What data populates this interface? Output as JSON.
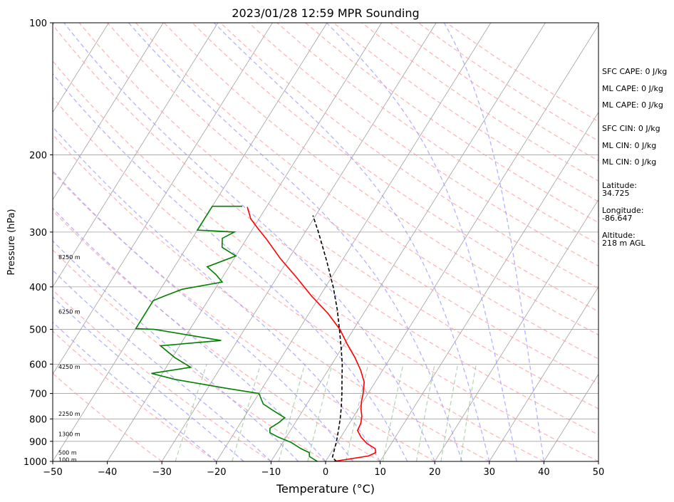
{
  "chart_data": {
    "type": "line",
    "title": "2023/01/28 12:59 MPR Sounding",
    "xlabel": "Temperature (°C)",
    "ylabel": "Pressure (hPa)",
    "xlim": [
      -50,
      50
    ],
    "ylim": [
      1000,
      100
    ],
    "y_scale": "log",
    "x_ticks": [
      -50,
      -40,
      -30,
      -20,
      -10,
      0,
      10,
      20,
      30,
      40,
      50
    ],
    "x_tick_labels": [
      "−50",
      "−40",
      "−30",
      "−20",
      "−10",
      "0",
      "10",
      "20",
      "30",
      "40",
      "50"
    ],
    "y_ticks": [
      1000,
      900,
      800,
      700,
      600,
      500,
      400,
      300,
      200,
      100
    ],
    "y_tick_labels": [
      "1000",
      "900",
      "800",
      "700",
      "600",
      "500",
      "400",
      "300",
      "200",
      "100"
    ],
    "grid": true,
    "series": [
      {
        "color": "#ff0000",
        "style": "solid",
        "points": [
          [
            1.5,
            1000
          ],
          [
            7.2,
            972
          ],
          [
            8.2,
            955
          ],
          [
            7.6,
            935
          ],
          [
            5.5,
            910
          ],
          [
            3.7,
            880
          ],
          [
            2.3,
            850
          ],
          [
            2.1,
            820
          ],
          [
            1.5,
            790
          ],
          [
            0.5,
            760
          ],
          [
            -0.3,
            730
          ],
          [
            -0.9,
            700
          ],
          [
            -2.0,
            660
          ],
          [
            -4.0,
            620
          ],
          [
            -6.5,
            580
          ],
          [
            -9.5,
            540
          ],
          [
            -12.5,
            500
          ],
          [
            -16.5,
            460
          ],
          [
            -21.5,
            420
          ],
          [
            -26.5,
            380
          ],
          [
            -31.5,
            345
          ],
          [
            -36.5,
            310
          ],
          [
            -39.0,
            295
          ],
          [
            -41.5,
            280
          ],
          [
            -43.5,
            263
          ]
        ]
      },
      {
        "color": "#008000",
        "style": "solid",
        "points": [
          [
            -1.5,
            1000
          ],
          [
            -3.5,
            975
          ],
          [
            -4.0,
            955
          ],
          [
            -6.0,
            935
          ],
          [
            -8.5,
            905
          ],
          [
            -11.5,
            880
          ],
          [
            -13.5,
            860
          ],
          [
            -14.0,
            840
          ],
          [
            -13.0,
            815
          ],
          [
            -12.5,
            795
          ],
          [
            -15.0,
            770
          ],
          [
            -18.0,
            740
          ],
          [
            -20.0,
            700
          ],
          [
            -27.0,
            680
          ],
          [
            -37.0,
            650
          ],
          [
            -42.0,
            630
          ],
          [
            -35.5,
            610
          ],
          [
            -39.5,
            580
          ],
          [
            -43.5,
            545
          ],
          [
            -33.0,
            530
          ],
          [
            -46.5,
            500
          ],
          [
            -50.0,
            498
          ],
          [
            -50.0,
            430
          ],
          [
            -48.5,
            420
          ],
          [
            -46.0,
            405
          ],
          [
            -39.5,
            390
          ],
          [
            -41.5,
            375
          ],
          [
            -44.0,
            360
          ],
          [
            -40.0,
            340
          ],
          [
            -43.5,
            325
          ],
          [
            -44.5,
            310
          ],
          [
            -43.0,
            300
          ],
          [
            -47.5,
            298
          ],
          [
            -50.0,
            297
          ],
          [
            -50.0,
            262
          ],
          [
            -44.5,
            262
          ]
        ]
      },
      {
        "color": "#000000",
        "style": "dashed",
        "points": [
          [
            2.0,
            1000
          ],
          [
            0.8,
            980
          ],
          [
            0.4,
            950
          ],
          [
            -0.3,
            900
          ],
          [
            -1.2,
            850
          ],
          [
            -2.2,
            800
          ],
          [
            -3.4,
            750
          ],
          [
            -4.8,
            700
          ],
          [
            -6.4,
            650
          ],
          [
            -8.1,
            600
          ],
          [
            -10.2,
            550
          ],
          [
            -12.6,
            500
          ],
          [
            -15.3,
            450
          ],
          [
            -18.6,
            400
          ],
          [
            -22.7,
            350
          ],
          [
            -27.6,
            300
          ],
          [
            -30.5,
            275
          ]
        ]
      }
    ],
    "height_labels": [
      {
        "pressure": 990,
        "label": "100 m"
      },
      {
        "pressure": 955,
        "label": "500 m"
      },
      {
        "pressure": 866,
        "label": "1300 m"
      },
      {
        "pressure": 778,
        "label": "2250 m"
      },
      {
        "pressure": 608,
        "label": "4250 m"
      },
      {
        "pressure": 455,
        "label": "6250 m"
      },
      {
        "pressure": 342,
        "label": "8250 m"
      }
    ],
    "annotations": [
      "SFC CAPE: 0 J/kg",
      "ML CAPE: 0 J/kg",
      "ML CAPE: 0 J/kg",
      "SFC CIN: 0 J/kg",
      "ML CIN: 0 J/kg",
      "ML CIN: 0 J/kg",
      "Latitude:\n34.725",
      "Longitude:\n-86.647",
      "Altitude:\n218 m AGL"
    ]
  },
  "colors": {
    "temperature": "#ff0000",
    "dewpoint": "#008000",
    "parcel": "#000000",
    "isotherm": "#a0a0a0",
    "dry_adiabat": "#ff9999",
    "moist_adiabat": "#9999ff",
    "mixing_ratio": "#66aa66"
  }
}
